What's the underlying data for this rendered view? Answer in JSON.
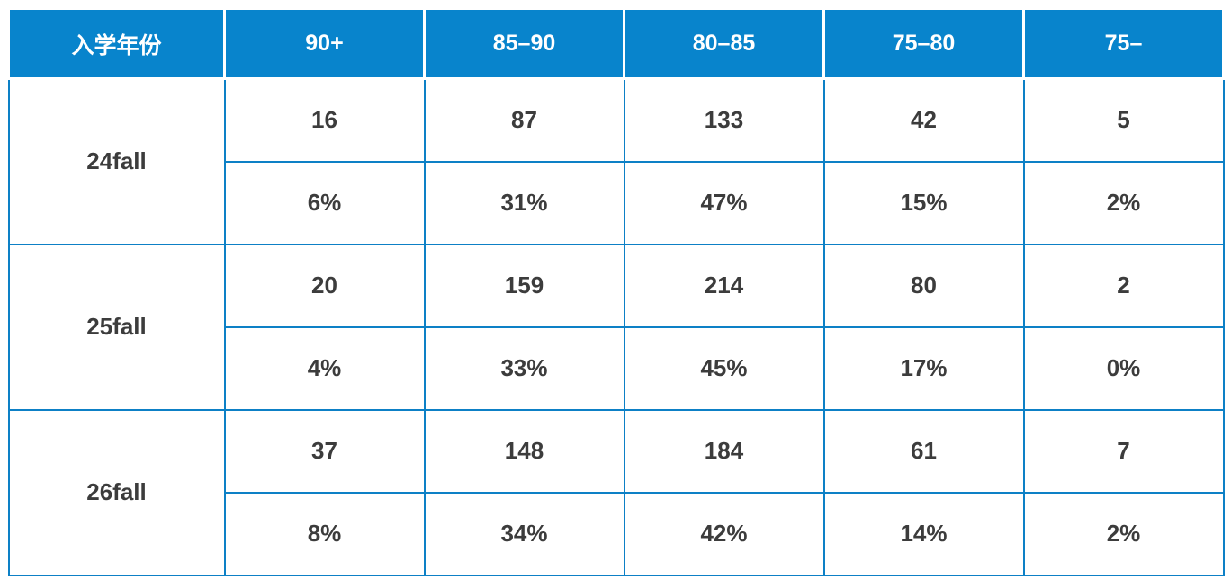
{
  "chart_data": {
    "type": "table",
    "columns": [
      "入学年份",
      "90+",
      "85–90",
      "80–85",
      "75–80",
      "75–"
    ],
    "rows": [
      {
        "year": "24fall",
        "counts": [
          16,
          87,
          133,
          42,
          5
        ],
        "percents": [
          "6%",
          "31%",
          "47%",
          "15%",
          "2%"
        ]
      },
      {
        "year": "25fall",
        "counts": [
          20,
          159,
          214,
          80,
          2
        ],
        "percents": [
          "4%",
          "33%",
          "45%",
          "17%",
          "0%"
        ]
      },
      {
        "year": "26fall",
        "counts": [
          37,
          148,
          184,
          61,
          7
        ],
        "percents": [
          "8%",
          "34%",
          "42%",
          "14%",
          "2%"
        ]
      }
    ]
  },
  "style": {
    "header_bg": "#0884CC",
    "header_text": "#FFFFFF",
    "grid_color": "#0D80C6",
    "cell_text": "#3C3C3C",
    "page_bg": "#FFFFFF"
  }
}
